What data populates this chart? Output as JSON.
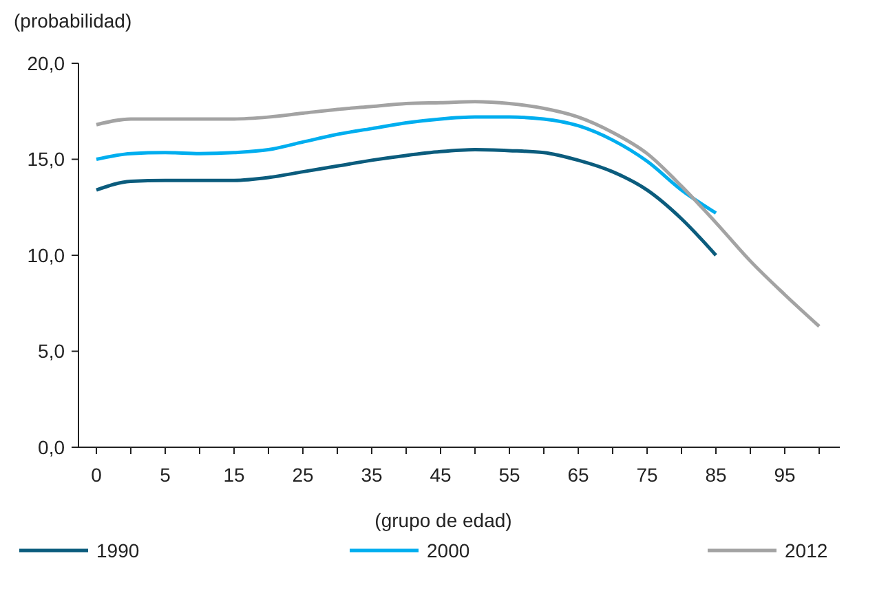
{
  "chart_data": {
    "type": "line",
    "ylabel": "(probabilidad)",
    "xlabel": "(grupo de edad)",
    "categories": [
      "0",
      null,
      "5",
      null,
      "15",
      null,
      "25",
      null,
      "35",
      null,
      "45",
      null,
      "55",
      null,
      "65",
      null,
      "75",
      null,
      "85",
      null,
      "95",
      null
    ],
    "series": [
      {
        "name": "1990",
        "color": "#0b5c7d",
        "values": [
          13.4,
          13.85,
          13.9,
          13.9,
          13.9,
          14.05,
          14.35,
          14.65,
          14.95,
          15.2,
          15.4,
          15.5,
          15.45,
          15.35,
          14.95,
          14.35,
          13.4,
          11.9,
          10.0,
          null,
          null,
          null
        ]
      },
      {
        "name": "2000",
        "color": "#00aeef",
        "values": [
          15.0,
          15.3,
          15.35,
          15.3,
          15.35,
          15.5,
          15.9,
          16.3,
          16.6,
          16.9,
          17.1,
          17.2,
          17.2,
          17.1,
          16.75,
          16.0,
          14.9,
          13.4,
          12.2,
          null,
          null,
          null
        ]
      },
      {
        "name": "2012",
        "color": "#a3a3a3",
        "values": [
          16.8,
          17.1,
          17.1,
          17.1,
          17.1,
          17.2,
          17.4,
          17.6,
          17.75,
          17.9,
          17.95,
          18.0,
          17.9,
          17.65,
          17.2,
          16.4,
          15.3,
          13.6,
          11.7,
          9.7,
          7.95,
          6.3
        ]
      }
    ],
    "ylim": [
      0,
      20
    ],
    "yticks": [
      {
        "value": 0,
        "label": "0,0"
      },
      {
        "value": 5,
        "label": "5,0"
      },
      {
        "value": 10,
        "label": "10,0"
      },
      {
        "value": 15,
        "label": "15,0"
      },
      {
        "value": 20,
        "label": "20,0"
      }
    ],
    "grid": false,
    "legend": "bottom",
    "line_style": "solid"
  }
}
